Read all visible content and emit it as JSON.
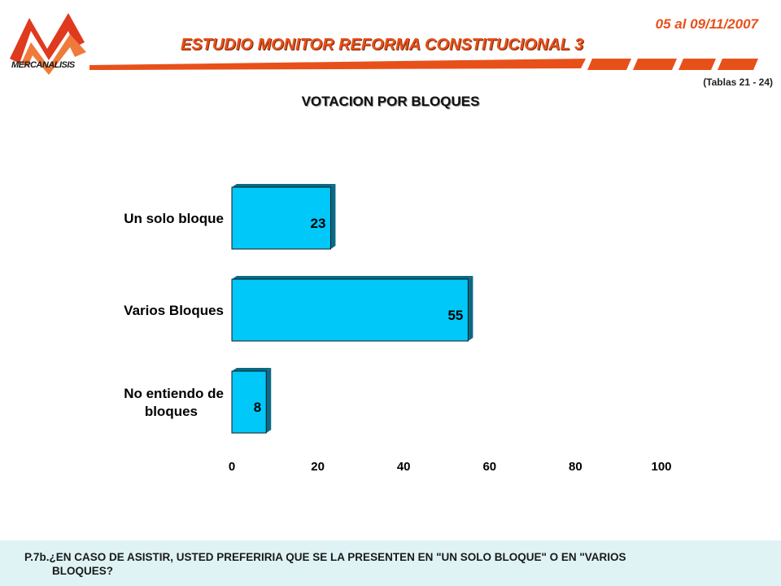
{
  "header": {
    "logo_text": "MERCANALISIS",
    "date": "05 al 09/11/2007",
    "study_title": "ESTUDIO MONITOR REFORMA CONSTITUCIONAL 3",
    "tables_ref": "(Tablas 21 - 24)"
  },
  "colors": {
    "accent": "#e8501a",
    "bar_face": "#00c8f8",
    "bar_side": "#0a6a86",
    "footer_bg": "#dff3f5"
  },
  "chart_data": {
    "type": "bar",
    "orientation": "horizontal",
    "title": "VOTACION POR BLOQUES",
    "categories": [
      [
        "Un solo bloque"
      ],
      [
        "Varios Bloques"
      ],
      [
        "No entiendo de",
        "bloques"
      ]
    ],
    "values": [
      23,
      55,
      8
    ],
    "xlim": [
      0,
      100
    ],
    "xticks": [
      0,
      20,
      40,
      60,
      80,
      100
    ],
    "grid": false,
    "legend": "none"
  },
  "footer": {
    "question_line1": "P.7b.¿EN CASO DE ASISTIR, USTED PREFERIRIA QUE SE LA PRESENTEN EN \"UN SOLO BLOQUE\" O EN \"VARIOS",
    "question_line2": "BLOQUES?"
  }
}
